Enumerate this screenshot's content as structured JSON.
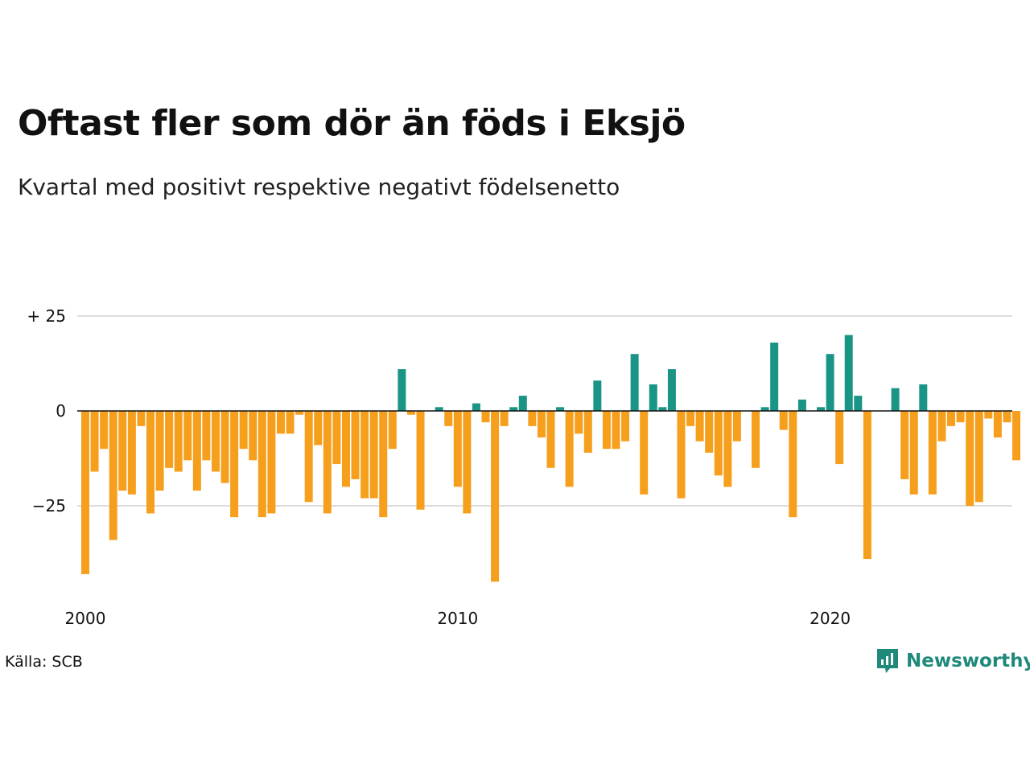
{
  "title": "Oftast fler som dör än föds i Eksjö",
  "subtitle": "Kvartal med positivt respektive negativt födelsenetto",
  "source": "Källa: SCB",
  "brand": {
    "name": "Newsworthy",
    "icon": "newsworthy-logo-icon"
  },
  "colors": {
    "positive": "#1a9485",
    "negative": "#f59f1d",
    "grid": "#dddddd",
    "zero": "#111111"
  },
  "chart_data": {
    "type": "bar",
    "x_unit": "quarter",
    "start_year": 2000,
    "ylim": [
      -45,
      27
    ],
    "y_ticks": [
      {
        "value": 25,
        "label": "+ 25"
      },
      {
        "value": 0,
        "label": "0"
      },
      {
        "value": -25,
        "label": "−25"
      }
    ],
    "x_ticks": [
      {
        "value": 2000,
        "label": "2000"
      },
      {
        "value": 2010,
        "label": "2010"
      },
      {
        "value": 2020,
        "label": "2020"
      }
    ],
    "grid": true,
    "values": [
      -43,
      -16,
      -10,
      -34,
      -21,
      -22,
      -4,
      -27,
      -21,
      -15,
      -16,
      -13,
      -21,
      -13,
      -16,
      -19,
      -28,
      -10,
      -13,
      -28,
      -27,
      -6,
      -6,
      -1,
      -24,
      -9,
      -27,
      -14,
      -20,
      -18,
      -23,
      -23,
      -28,
      -10,
      11,
      -1,
      -26,
      0,
      1,
      -4,
      -20,
      -27,
      2,
      -3,
      -45,
      -4,
      1,
      4,
      -4,
      -7,
      -15,
      1,
      -20,
      -6,
      -11,
      8,
      -10,
      -10,
      -8,
      15,
      -22,
      7,
      1,
      11,
      -23,
      -4,
      -8,
      -11,
      -17,
      -20,
      -8,
      0,
      -15,
      1,
      18,
      -5,
      -28,
      3,
      0,
      1,
      15,
      -14,
      20,
      4,
      -39,
      0,
      0,
      6,
      -18,
      -22,
      7,
      -22,
      -8,
      -4,
      -3,
      -25,
      -24,
      -2,
      -7,
      -3,
      -13
    ]
  }
}
